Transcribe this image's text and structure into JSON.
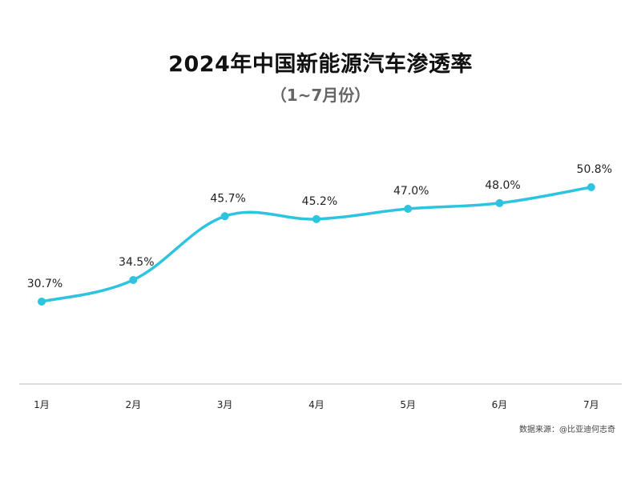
{
  "title": "2024年中国新能源汽车渗透率",
  "subtitle": "（1~7月份）",
  "source": "数据来源：@比亚迪何志奇",
  "colors": {
    "line": "#2ec4e0",
    "axis": "#bbbbbb",
    "label": "#222222"
  },
  "chart_data": {
    "type": "line",
    "title": "2024年中国新能源汽车渗透率",
    "subtitle": "（1~7月份）",
    "categories": [
      "1月",
      "2月",
      "3月",
      "4月",
      "5月",
      "6月",
      "7月"
    ],
    "values": [
      30.7,
      34.5,
      45.7,
      45.2,
      47.0,
      48.0,
      50.8
    ],
    "data_labels": [
      "30.7%",
      "34.5%",
      "45.7%",
      "45.2%",
      "47.0%",
      "48.0%",
      "50.8%"
    ],
    "smooth": true,
    "grid": false,
    "show_y_axis": false,
    "legend": "none"
  }
}
